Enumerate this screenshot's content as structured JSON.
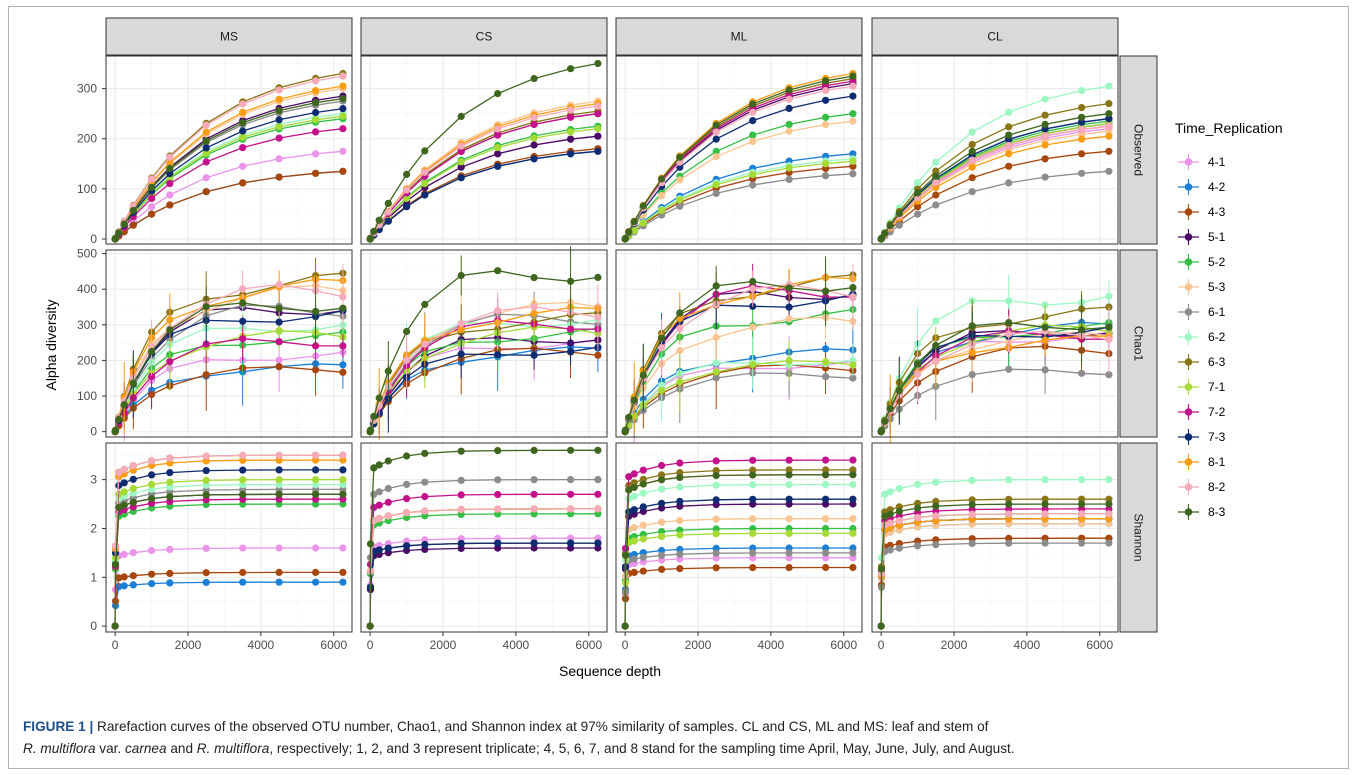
{
  "chart_data": {
    "type": "line",
    "ylabel": "Alpha diversity",
    "xlabel": "Sequence depth",
    "legend_title": "Time_Replication",
    "legend_placement": "right",
    "grid": true,
    "columns": [
      "MS",
      "CS",
      "ML",
      "CL"
    ],
    "rows": [
      "Observed",
      "Chao1",
      "Shannon"
    ],
    "x": [
      0,
      10,
      100,
      250,
      500,
      1000,
      1500,
      2500,
      3500,
      4500,
      5500,
      6250
    ],
    "xticks": [
      0,
      2000,
      4000,
      6000
    ],
    "xlim": [
      -250,
      6500
    ],
    "row_axes": [
      {
        "ylim": [
          -10,
          365
        ],
        "yticks": [
          0,
          100,
          200,
          300
        ]
      },
      {
        "ylim": [
          -15,
          510
        ],
        "yticks": [
          0,
          100,
          200,
          300,
          400,
          500
        ]
      },
      {
        "ylim": [
          -0.12,
          3.75
        ],
        "yticks": [
          0,
          1,
          2,
          3
        ]
      }
    ],
    "series": [
      {
        "name": "4-1",
        "color": "#ea94ea"
      },
      {
        "name": "4-2",
        "color": "#1b7fd6"
      },
      {
        "name": "4-3",
        "color": "#a8470c"
      },
      {
        "name": "5-1",
        "color": "#4a0a66"
      },
      {
        "name": "5-2",
        "color": "#35c045"
      },
      {
        "name": "5-3",
        "color": "#fbc592"
      },
      {
        "name": "6-1",
        "color": "#8c8c8c"
      },
      {
        "name": "6-2",
        "color": "#9cf7c3"
      },
      {
        "name": "6-3",
        "color": "#8a7516"
      },
      {
        "name": "7-1",
        "color": "#a6da35"
      },
      {
        "name": "7-2",
        "color": "#c4108a"
      },
      {
        "name": "7-3",
        "color": "#0e2c72"
      },
      {
        "name": "8-1",
        "color": "#f99d12"
      },
      {
        "name": "8-2",
        "color": "#f7aaba"
      },
      {
        "name": "8-3",
        "color": "#3f661f"
      }
    ],
    "final_values": {
      "Observed": {
        "MS": {
          "4-1": 175,
          "4-2": 135,
          "4-3": 135,
          "5-1": 285,
          "5-2": 240,
          "5-3": 300,
          "6-1": 275,
          "6-2": 250,
          "6-3": 330,
          "7-1": 245,
          "7-2": 220,
          "7-3": 260,
          "8-1": 305,
          "8-2": 325,
          "8-3": 280
        },
        "CS": {
          "4-1": 205,
          "4-2": 175,
          "4-3": 180,
          "5-1": 205,
          "5-2": 225,
          "5-3": 275,
          "6-1": 250,
          "6-2": 255,
          "6-3": 255,
          "7-1": 220,
          "7-2": 250,
          "7-3": 175,
          "8-1": 270,
          "8-2": 265,
          "8-3": 350
        },
        "ML": {
          "4-1": 145,
          "4-2": 170,
          "4-3": 145,
          "5-1": 310,
          "5-2": 250,
          "5-3": 235,
          "6-1": 130,
          "6-2": 160,
          "6-3": 320,
          "7-1": 155,
          "7-2": 315,
          "7-3": 285,
          "8-1": 330,
          "8-2": 305,
          "8-3": 325
        },
        "CL": {
          "4-1": 220,
          "4-2": 240,
          "4-3": 175,
          "5-1": 230,
          "5-2": 235,
          "5-3": 215,
          "6-1": 135,
          "6-2": 305,
          "6-3": 270,
          "7-1": 230,
          "7-2": 225,
          "7-3": 240,
          "8-1": 205,
          "8-2": 225,
          "8-3": 250
        }
      },
      "Chao1": {
        "MS": {
          "4-1": 215,
          "4-2": 180,
          "4-3": 175,
          "5-1": 350,
          "5-2": 265,
          "5-3": 390,
          "6-1": 345,
          "6-2": 300,
          "6-3": 420,
          "7-1": 270,
          "7-2": 255,
          "7-3": 330,
          "8-1": 405,
          "8-2": 395,
          "8-3": 360
        },
        "CS": {
          "4-1": 250,
          "4-2": 225,
          "4-3": 225,
          "5-1": 265,
          "5-2": 275,
          "5-3": 345,
          "6-1": 320,
          "6-2": 315,
          "6-3": 315,
          "7-1": 280,
          "7-2": 305,
          "7-3": 230,
          "8-1": 330,
          "8-2": 335,
          "8-3": 450
        },
        "ML": {
          "4-1": 190,
          "4-2": 220,
          "4-3": 180,
          "5-1": 395,
          "5-2": 325,
          "5-3": 305,
          "6-1": 160,
          "6-2": 200,
          "6-3": 415,
          "7-1": 190,
          "7-2": 400,
          "7-3": 375,
          "8-1": 410,
          "8-2": 395,
          "8-3": 420
        },
        "CL": {
          "4-1": 270,
          "4-2": 290,
          "4-3": 230,
          "5-1": 285,
          "5-2": 290,
          "5-3": 265,
          "6-1": 170,
          "6-2": 380,
          "6-3": 330,
          "7-1": 285,
          "7-2": 275,
          "7-3": 285,
          "8-1": 255,
          "8-2": 270,
          "8-3": 305
        }
      },
      "Shannon": {
        "MS": {
          "4-1": 1.6,
          "4-2": 0.9,
          "4-3": 1.1,
          "5-1": 2.7,
          "5-2": 2.5,
          "5-3": 3.4,
          "6-1": 2.8,
          "6-2": 2.9,
          "6-3": 3.5,
          "7-1": 3.0,
          "7-2": 2.6,
          "7-3": 3.2,
          "8-1": 3.4,
          "8-2": 3.5,
          "8-3": 2.7
        },
        "CS": {
          "4-1": 1.8,
          "4-2": 1.7,
          "4-3": 1.7,
          "5-1": 1.6,
          "5-2": 2.3,
          "5-3": 2.4,
          "6-1": 3.0,
          "6-2": 2.4,
          "6-3": 2.4,
          "7-1": 2.4,
          "7-2": 2.7,
          "7-3": 1.7,
          "8-1": 2.4,
          "8-2": 2.4,
          "8-3": 3.6
        },
        "ML": {
          "4-1": 1.4,
          "4-2": 1.6,
          "4-3": 1.2,
          "5-1": 2.5,
          "5-2": 2.0,
          "5-3": 2.2,
          "6-1": 1.5,
          "6-2": 2.9,
          "6-3": 3.2,
          "7-1": 1.9,
          "7-2": 3.4,
          "7-3": 2.6,
          "8-1": 3.1,
          "8-2": 3.1,
          "8-3": 3.1
        },
        "CL": {
          "4-1": 1.8,
          "4-2": 2.1,
          "4-3": 1.8,
          "5-1": 2.2,
          "5-2": 2.3,
          "5-3": 2.1,
          "6-1": 1.7,
          "6-2": 3.0,
          "6-3": 2.6,
          "7-1": 2.3,
          "7-2": 2.4,
          "7-3": 2.2,
          "8-1": 2.2,
          "8-2": 2.3,
          "8-3": 2.5
        }
      }
    }
  },
  "caption": {
    "label": "FIGURE 1 |",
    "line1": " Rarefaction curves of the observed OTU number, Chao1, and Shannon index at 97% similarity of samples. CL and CS, ML and MS: leaf and stem of",
    "line2_species1": "R. multiflora",
    "line2_var": " var. ",
    "line2_carnea": "carnea",
    "line2_and": " and ",
    "line2_species2": "R. multiflora",
    "line2_rest": ", respectively; 1, 2, and 3 represent triplicate; 4, 5, 6, 7, and 8 stand for the sampling time April, May, June, July, and August."
  }
}
